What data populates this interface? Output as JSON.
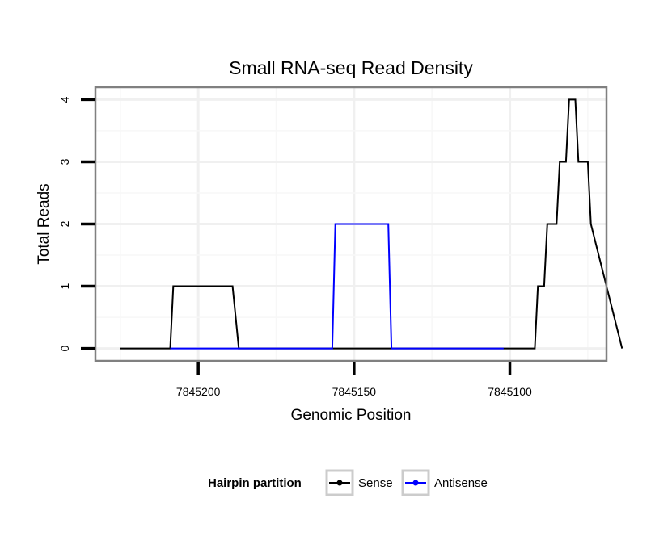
{
  "chart_data": {
    "type": "line",
    "title": "Small RNA-seq Read Density",
    "xlabel": "Genomic Position",
    "ylabel": "Total Reads",
    "x_reversed": true,
    "xlim": [
      7845233,
      7845069
    ],
    "ylim": [
      -0.2,
      4.2
    ],
    "x_ticks": [
      7845200,
      7845150,
      7845100
    ],
    "x_tick_labels": [
      "7845200",
      "7845150",
      "7845100"
    ],
    "y_ticks": [
      0,
      1,
      2,
      3,
      4
    ],
    "y_tick_labels": [
      "0",
      "1",
      "2",
      "3",
      "4"
    ],
    "grid": true,
    "legend": {
      "title": "Hairpin partition",
      "placement": "bottom"
    },
    "series": [
      {
        "name": "Sense",
        "color": "#000000",
        "x": [
          7845225,
          7845209,
          7845208,
          7845189,
          7845187,
          7845092,
          7845091,
          7845089,
          7845088,
          7845085,
          7845084,
          7845082,
          7845081,
          7845079,
          7845078,
          7845075,
          7845074,
          7845064
        ],
        "y": [
          0,
          0,
          1,
          1,
          0,
          0,
          1,
          1,
          2,
          2,
          3,
          3,
          4,
          4,
          3,
          3,
          2,
          0
        ]
      },
      {
        "name": "Antisense",
        "color": "#0000ff",
        "x": [
          7845209,
          7845187,
          7845185,
          7845188,
          7845157,
          7845156,
          7845139,
          7845138,
          7845102
        ],
        "y": [
          0,
          0,
          0,
          0,
          0,
          2,
          2,
          0,
          0
        ]
      }
    ]
  }
}
